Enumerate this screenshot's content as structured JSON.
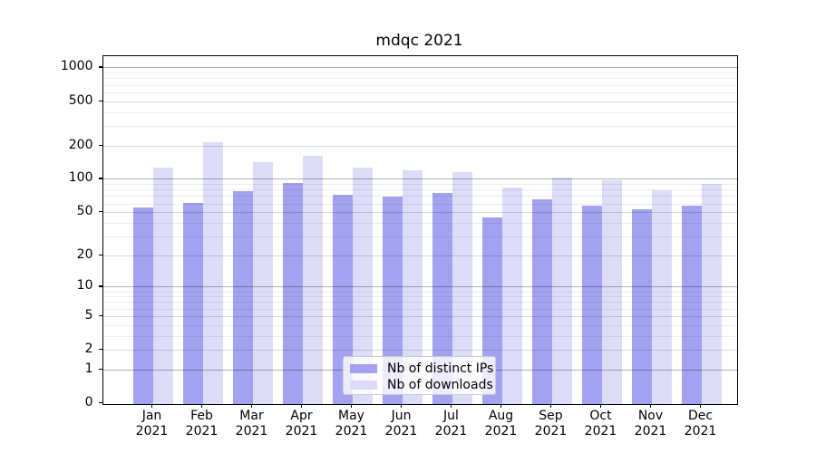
{
  "figure": {
    "title": "mdqc 2021"
  },
  "legend": {
    "items": [
      {
        "label": "Nb of distinct IPs",
        "color": "#a2a2f0"
      },
      {
        "label": "Nb of downloads",
        "color": "#dcdcf9"
      }
    ]
  },
  "axes": {
    "y_tick_labels": [
      "0",
      "1",
      "2",
      "5",
      "10",
      "20",
      "50",
      "100",
      "200",
      "500",
      "1000"
    ],
    "x_tick_month_line": [
      "Jan",
      "Feb",
      "Mar",
      "Apr",
      "May",
      "Jun",
      "Jul",
      "Aug",
      "Sep",
      "Oct",
      "Nov",
      "Dec"
    ],
    "x_tick_year_line": "2021"
  },
  "chart_data": {
    "type": "bar",
    "title": "mdqc 2021",
    "categories": [
      "Jan 2021",
      "Feb 2021",
      "Mar 2021",
      "Apr 2021",
      "May 2021",
      "Jun 2021",
      "Jul 2021",
      "Aug 2021",
      "Sep 2021",
      "Oct 2021",
      "Nov 2021",
      "Dec 2021"
    ],
    "series": [
      {
        "name": "Nb of distinct IPs",
        "color": "#a2a2f0",
        "values": [
          55,
          61,
          78,
          92,
          72,
          69,
          75,
          45,
          65,
          57,
          53,
          57
        ]
      },
      {
        "name": "Nb of downloads",
        "color": "#dcdcf9",
        "values": [
          127,
          215,
          141,
          161,
          127,
          119,
          116,
          83,
          102,
          97,
          79,
          90
        ]
      }
    ],
    "xlabel": "",
    "ylabel": "",
    "yscale": "log1p",
    "ylim": [
      0,
      1000
    ],
    "yticks": [
      0,
      1,
      2,
      5,
      10,
      20,
      50,
      100,
      200,
      500,
      1000
    ],
    "grid": true,
    "grid_over_bars": true,
    "legend_position": "lower center"
  }
}
